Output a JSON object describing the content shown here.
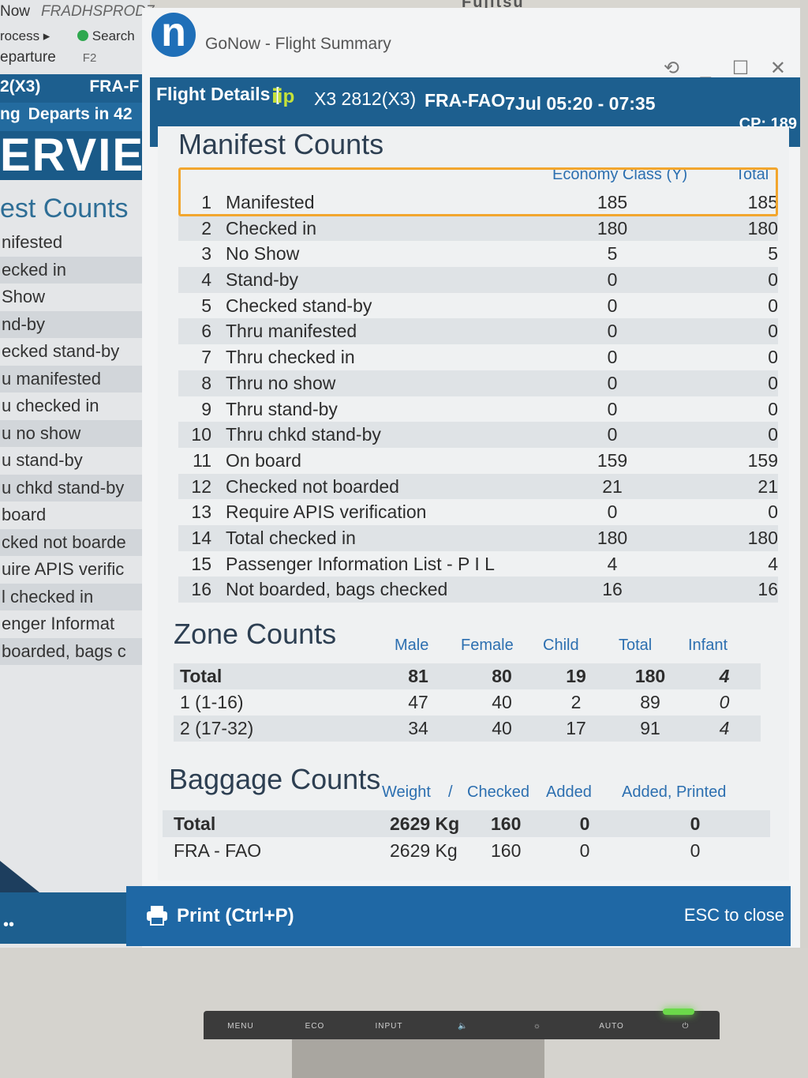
{
  "bezel": {
    "brand": "Fujitsu"
  },
  "background_app": {
    "row1_left": "Now",
    "row1_env": "FRADHSPROD7",
    "process": "rocess ▸",
    "search": "Search",
    "departure": "eparture",
    "departure_key": "F2",
    "flight_fragment": "2(X3)",
    "route_fragment": "FRA-F",
    "status_fragment": "ng",
    "departs_fragment": "Departs in 42",
    "logo_fragment": "ERVIE",
    "section_fragment": "est Counts",
    "items": [
      "nifested",
      "ecked in",
      " Show",
      "nd-by",
      "ecked stand-by",
      "u manifested",
      "u checked in",
      "u no show",
      "u stand-by",
      "u chkd stand-by",
      "board",
      "cked not boarde",
      "uire APIS verific",
      "l checked in",
      "enger Informat",
      "boarded, bags c"
    ],
    "bottom_dots": "••"
  },
  "window": {
    "logo_letter": "n",
    "title": "GoNow - Flight Summary",
    "controls": "⟲ _ ☐ ✕"
  },
  "details": {
    "label": "Flight Details |",
    "flight_icon": "ⅱp",
    "flight": "X3 2812(X3)",
    "route": "FRA-FAO",
    "date_time": "7Jul 05:20 - 07:35",
    "cp": "CP: 189"
  },
  "manifest": {
    "title": "Manifest Counts",
    "col_economy": "Economy Class (Y)",
    "col_total": "Total",
    "rows": [
      {
        "num": "1",
        "label": "Manifested",
        "economy": "185",
        "total": "185"
      },
      {
        "num": "2",
        "label": "Checked in",
        "economy": "180",
        "total": "180"
      },
      {
        "num": "3",
        "label": "No Show",
        "economy": "5",
        "total": "5"
      },
      {
        "num": "4",
        "label": "Stand-by",
        "economy": "0",
        "total": "0"
      },
      {
        "num": "5",
        "label": "Checked stand-by",
        "economy": "0",
        "total": "0"
      },
      {
        "num": "6",
        "label": "Thru manifested",
        "economy": "0",
        "total": "0"
      },
      {
        "num": "7",
        "label": "Thru checked in",
        "economy": "0",
        "total": "0"
      },
      {
        "num": "8",
        "label": "Thru no show",
        "economy": "0",
        "total": "0"
      },
      {
        "num": "9",
        "label": "Thru stand-by",
        "economy": "0",
        "total": "0"
      },
      {
        "num": "10",
        "label": "Thru chkd stand-by",
        "economy": "0",
        "total": "0"
      },
      {
        "num": "11",
        "label": "On board",
        "economy": "159",
        "total": "159"
      },
      {
        "num": "12",
        "label": "Checked not boarded",
        "economy": "21",
        "total": "21"
      },
      {
        "num": "13",
        "label": "Require APIS verification",
        "economy": "0",
        "total": "0"
      },
      {
        "num": "14",
        "label": "Total checked in",
        "economy": "180",
        "total": "180"
      },
      {
        "num": "15",
        "label": "Passenger Information List - P I L",
        "economy": "4",
        "total": "4"
      },
      {
        "num": "16",
        "label": "Not boarded, bags checked",
        "economy": "16",
        "total": "16"
      }
    ]
  },
  "zone": {
    "title": "Zone Counts",
    "headers": {
      "male": "Male",
      "female": "Female",
      "child": "Child",
      "total": "Total",
      "infant": "Infant"
    },
    "rows": [
      {
        "label": "Total",
        "male": "81",
        "female": "80",
        "child": "19",
        "total": "180",
        "infant": "4"
      },
      {
        "label": "1 (1-16)",
        "male": "47",
        "female": "40",
        "child": "2",
        "total": "89",
        "infant": "0"
      },
      {
        "label": "2 (17-32)",
        "male": "34",
        "female": "40",
        "child": "17",
        "total": "91",
        "infant": "4"
      }
    ]
  },
  "baggage": {
    "title": "Baggage Counts",
    "headers": {
      "weight": "Weight",
      "sep": "/",
      "checked": "Checked",
      "added": "Added",
      "added_printed": "Added, Printed"
    },
    "rows": [
      {
        "label": "Total",
        "weight": "2629 Kg",
        "checked": "160",
        "added": "0",
        "added_printed": "0"
      },
      {
        "label": "FRA - FAO",
        "weight": "2629 Kg",
        "checked": "160",
        "added": "0",
        "added_printed": "0"
      }
    ]
  },
  "footer": {
    "print_label": "Print (Ctrl+P)",
    "esc_label": "ESC to close"
  },
  "monitor_buttons": [
    "MENU",
    "ECO",
    "INPUT",
    "🔈",
    "☼",
    "AUTO",
    "⏻"
  ],
  "colors": {
    "accent_blue": "#1d5f8f",
    "header_blue": "#2c6fb0",
    "highlight_orange": "#f2a62e",
    "footer_blue": "#1f68a5"
  }
}
